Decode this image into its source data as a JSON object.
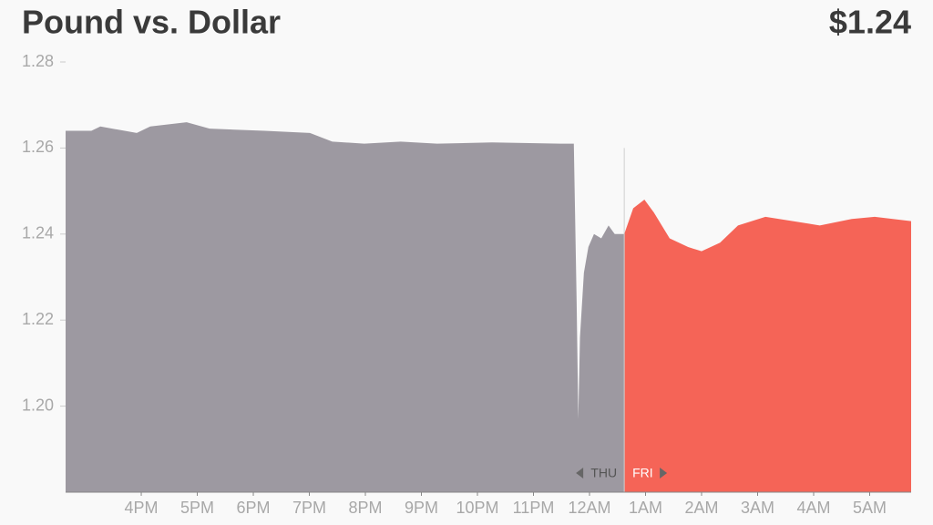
{
  "chart_data": {
    "type": "area",
    "title": "Pound vs. Dollar",
    "current_value": "$1.24",
    "annotations": [
      "THU",
      "FRI"
    ],
    "x": [
      14.65,
      15.11,
      15.27,
      15.92,
      16.16,
      16.81,
      17.22,
      18.2,
      19.01,
      19.41,
      19.98,
      20.63,
      21.28,
      22.26,
      23.48,
      23.72,
      23.77,
      23.8,
      23.83,
      23.9,
      23.98,
      24.08,
      24.21,
      24.34,
      24.45,
      24.62,
      24.78,
      24.98,
      25.15,
      25.43,
      25.76,
      26.0,
      26.33,
      26.65,
      27.14,
      27.63,
      28.11,
      28.68,
      29.09,
      29.74
    ],
    "series": [
      {
        "color": "#9d99a1",
        "values": [
          1.264,
          1.264,
          1.265,
          1.2635,
          1.265,
          1.266,
          1.2645,
          1.264,
          1.2635,
          1.2615,
          1.261,
          1.2615,
          1.261,
          1.2613,
          1.261,
          1.261,
          1.2245,
          1.197,
          1.216,
          1.231,
          1.237,
          1.24,
          1.239,
          1.242,
          1.24,
          1.24,
          null,
          null,
          null,
          null,
          null,
          null,
          null,
          null,
          null,
          null,
          null,
          null,
          null,
          null
        ]
      },
      {
        "color": "#f56457",
        "values": [
          null,
          null,
          null,
          null,
          null,
          null,
          null,
          null,
          null,
          null,
          null,
          null,
          null,
          null,
          null,
          null,
          null,
          null,
          null,
          null,
          null,
          null,
          null,
          null,
          null,
          1.24,
          1.246,
          1.248,
          1.245,
          1.239,
          1.237,
          1.236,
          1.238,
          1.242,
          1.244,
          1.243,
          1.242,
          1.2435,
          1.244,
          1.243
        ]
      }
    ],
    "xlim": [
      14.65,
      29.74
    ],
    "xticks": [
      {
        "value": 16,
        "label": "4PM"
      },
      {
        "value": 17,
        "label": "5PM"
      },
      {
        "value": 18,
        "label": "6PM"
      },
      {
        "value": 19,
        "label": "7PM"
      },
      {
        "value": 20,
        "label": "8PM"
      },
      {
        "value": 21,
        "label": "9PM"
      },
      {
        "value": 22,
        "label": "10PM"
      },
      {
        "value": 23,
        "label": "11PM"
      },
      {
        "value": 24,
        "label": "12AM"
      },
      {
        "value": 25,
        "label": "1AM"
      },
      {
        "value": 26,
        "label": "2AM"
      },
      {
        "value": 27,
        "label": "3AM"
      },
      {
        "value": 28,
        "label": "4AM"
      },
      {
        "value": 29,
        "label": "5AM"
      }
    ],
    "ylim": [
      1.18,
      1.28
    ],
    "yticks": [
      {
        "value": 1.2,
        "label": "1.20"
      },
      {
        "value": 1.22,
        "label": "1.22"
      },
      {
        "value": 1.24,
        "label": "1.24"
      },
      {
        "value": 1.26,
        "label": "1.26"
      },
      {
        "value": 1.28,
        "label": "1.28"
      }
    ]
  }
}
